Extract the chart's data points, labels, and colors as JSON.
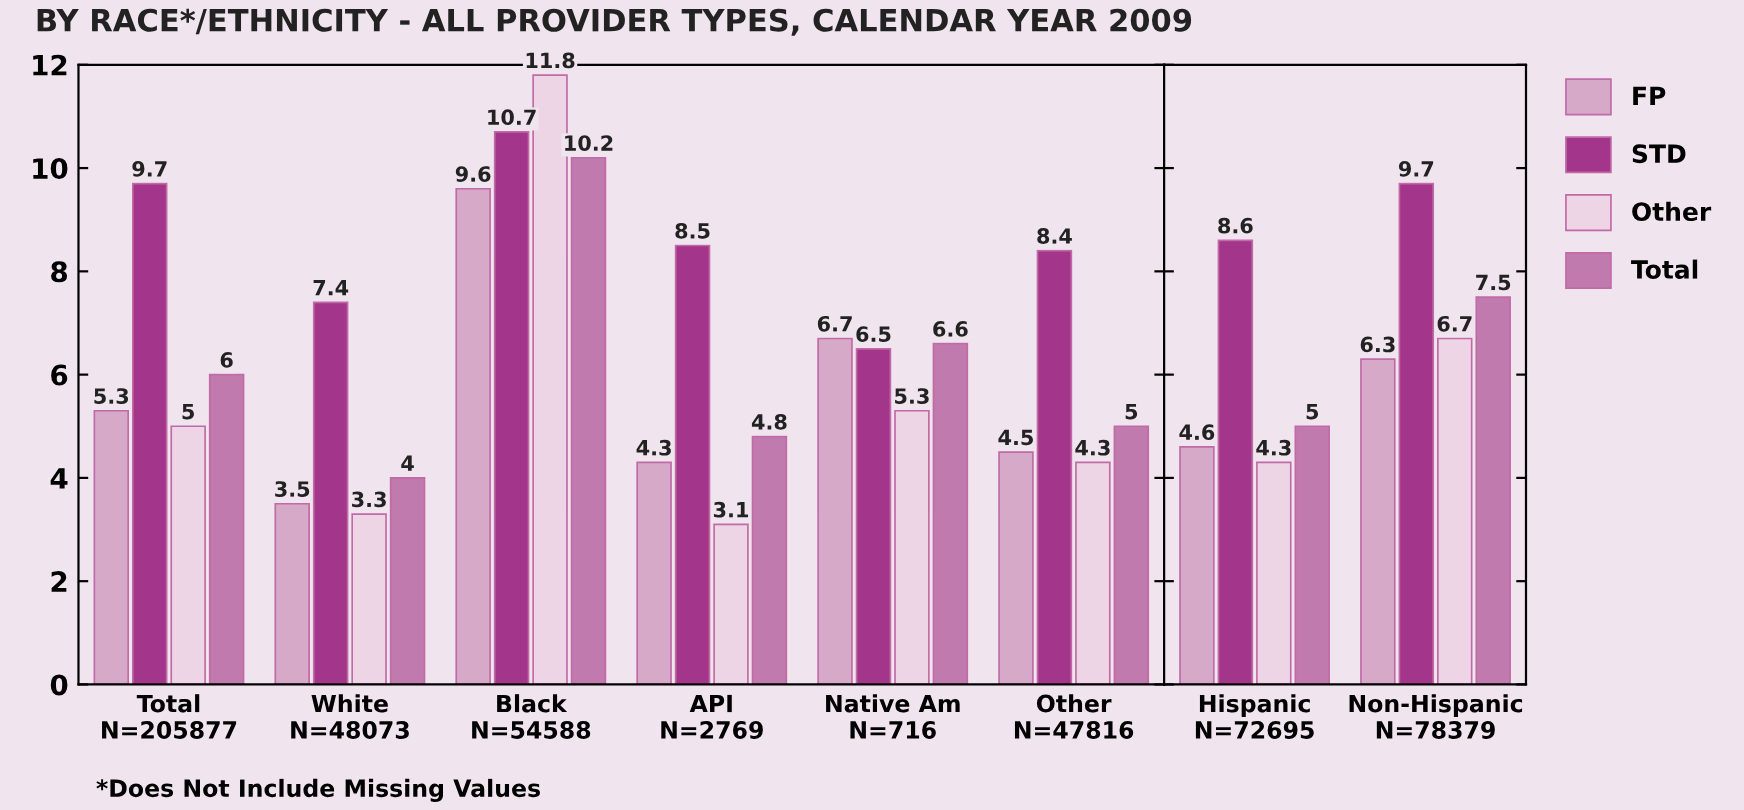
{
  "chart_data": [
    {
      "type": "bar",
      "title": "BY RACE*/ETHNICITY - ALL PROVIDER TYPES, CALENDAR YEAR 2009",
      "legend": "right",
      "categories": [
        "Total\nN=205877",
        "White\nN=48073",
        "Black\nN=54588",
        "API\nN=2769",
        "Native Am\nN=716",
        "Other\nN=47816"
      ],
      "series": [
        {
          "name": "FP",
          "color": "#d6a9c9",
          "values": [
            5.3,
            3.5,
            9.6,
            4.3,
            6.7,
            4.5
          ]
        },
        {
          "name": "STD",
          "color": "#a3368a",
          "values": [
            9.7,
            7.4,
            10.7,
            8.5,
            6.5,
            8.4
          ]
        },
        {
          "name": "Other",
          "color": "#edd5e6",
          "values": [
            5,
            3.3,
            11.8,
            3.1,
            5.3,
            4.3
          ]
        },
        {
          "name": "Total",
          "color": "#c07aae",
          "values": [
            6,
            4,
            10.2,
            4.8,
            6.6,
            5
          ]
        }
      ],
      "ylim": [
        0,
        12
      ],
      "yticks": [
        0,
        2,
        4,
        6,
        8,
        10,
        12
      ],
      "grid": false,
      "data_labels": true,
      "annotations": [
        "*Does Not Include Missing Values"
      ]
    },
    {
      "type": "bar",
      "categories": [
        "Hispanic\nN=72695",
        "Non-Hispanic\nN=78379"
      ],
      "series": [
        {
          "color": "#d6a9c9",
          "values": [
            4.6,
            6.3
          ]
        },
        {
          "color": "#a3368a",
          "values": [
            8.6,
            9.7
          ]
        },
        {
          "color": "#edd5e6",
          "values": [
            4.3,
            6.7
          ]
        },
        {
          "color": "#c07aae",
          "values": [
            5,
            7.5
          ]
        }
      ],
      "ylim": [
        0,
        12
      ],
      "tick_labels": "x",
      "grid": false,
      "data_labels": true
    }
  ]
}
